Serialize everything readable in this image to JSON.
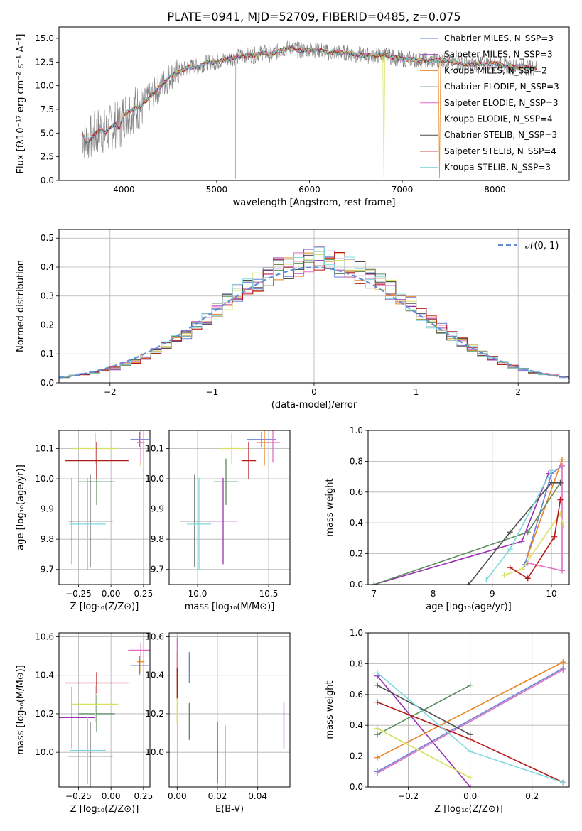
{
  "title": "PLATE=0941, MJD=52709, FIBERID=0485, z=0.075",
  "colors": [
    "#6b80d6",
    "#9b30b5",
    "#e58526",
    "#5b8c5e",
    "#e06fc0",
    "#d8e060",
    "#4d4d4d",
    "#b51a1a",
    "#7fd8de"
  ],
  "chart_data": [
    {
      "id": "spectrum",
      "type": "line",
      "xlabel": "wavelength [Angstrom, rest frame]",
      "ylabel": "Flux [fλ10⁻¹⁷ erg cm⁻² s⁻¹ A⁻¹]",
      "xlim": [
        3300,
        8800
      ],
      "ylim": [
        0,
        16.2
      ],
      "xticks": [
        4000,
        5000,
        6000,
        7000,
        8000
      ],
      "xtick_labels": [
        "4000",
        "5000",
        "6000",
        "7000",
        "8000"
      ],
      "yticks": [
        0,
        2.5,
        5,
        7.5,
        10,
        12.5,
        15
      ],
      "ytick_labels": [
        "0.0",
        "2.5",
        "5.0",
        "7.5",
        "10.0",
        "12.5",
        "15.0"
      ],
      "grid": false,
      "legend_position": "right",
      "legend": [
        "Chabrier MILES, N_SSP=3",
        "Salpeter MILES, N_SSP=3",
        "Kroupa MILES, N_SSP=2",
        "Chabrier ELODIE, N_SSP=3",
        "Salpeter ELODIE, N_SSP=3",
        "Kroupa ELODIE, N_SSP=4",
        "Chabrier STELIB, N_SSP=3",
        "Salpeter STELIB, N_SSP=4",
        "Kroupa STELIB, N_SSP=3"
      ],
      "legend_colors": [
        "#6b80d6",
        "#9b30b5",
        "#e58526",
        "#5b8c5e",
        "#e06fc0",
        "#d8e060",
        "#4d4d4d",
        "#b51a1a",
        "#7fd8de"
      ],
      "x": [
        3550,
        3600,
        3650,
        3700,
        3750,
        3800,
        3850,
        3900,
        3950,
        4000,
        4100,
        4200,
        4300,
        4400,
        4500,
        4600,
        4700,
        4800,
        4900,
        5000,
        5100,
        5200,
        5300,
        5400,
        5500,
        5600,
        5700,
        5800,
        5900,
        6000,
        6100,
        6200,
        6300,
        6400,
        6500,
        6600,
        6700,
        6800,
        6900,
        7000,
        7100,
        7200,
        7300,
        7400,
        7500,
        7600,
        7700,
        7800,
        7900,
        8000,
        8100,
        8200,
        8300,
        8400,
        8500
      ],
      "data": [
        5,
        4,
        4.5,
        5,
        5.5,
        5,
        5.5,
        6,
        5.5,
        7,
        7.5,
        8,
        9,
        10,
        11,
        11.5,
        12,
        12,
        12.5,
        12.5,
        12.8,
        13,
        13.2,
        13.2,
        13.5,
        13.3,
        13.8,
        14,
        13.7,
        13.8,
        13.8,
        13.5,
        13.5,
        13.5,
        13.3,
        13.2,
        13.2,
        13.3,
        13,
        12.8,
        12.8,
        12.7,
        12.6,
        12.7,
        12.6,
        12.4,
        12.2,
        12.3,
        12.3,
        12.4,
        12.1,
        12,
        12,
        11.9,
        11.8
      ]
    },
    {
      "id": "residuals",
      "type": "line",
      "xlabel": "(data-model)/error",
      "ylabel": "Normed distribution",
      "xlim": [
        -2.5,
        2.5
      ],
      "ylim": [
        0,
        0.53
      ],
      "xticks": [
        -2,
        -1,
        0,
        1,
        2
      ],
      "xtick_labels": [
        "−2",
        "−1",
        "0",
        "1",
        "2"
      ],
      "yticks": [
        0,
        0.1,
        0.2,
        0.3,
        0.4,
        0.5
      ],
      "ytick_labels": [
        "0.0",
        "0.1",
        "0.2",
        "0.3",
        "0.4",
        "0.5"
      ],
      "grid": true,
      "legend_position": "top-right",
      "legend": [
        "𝒩(0, 1)"
      ],
      "legend_color": "#5f8fd6",
      "x": [
        -2.5,
        -2.4,
        -2.3,
        -2.2,
        -2.1,
        -2.0,
        -1.9,
        -1.8,
        -1.7,
        -1.6,
        -1.5,
        -1.4,
        -1.3,
        -1.2,
        -1.1,
        -1.0,
        -0.9,
        -0.8,
        -0.7,
        -0.6,
        -0.5,
        -0.4,
        -0.3,
        -0.2,
        -0.1,
        0.0,
        0.1,
        0.2,
        0.3,
        0.4,
        0.5,
        0.6,
        0.7,
        0.8,
        0.9,
        1.0,
        1.1,
        1.2,
        1.3,
        1.4,
        1.5,
        1.6,
        1.7,
        1.8,
        1.9,
        2.0,
        2.1,
        2.2,
        2.3,
        2.4
      ],
      "data": [
        0.02,
        0.025,
        0.03,
        0.035,
        0.045,
        0.05,
        0.065,
        0.075,
        0.09,
        0.11,
        0.13,
        0.15,
        0.17,
        0.2,
        0.22,
        0.25,
        0.28,
        0.31,
        0.33,
        0.35,
        0.37,
        0.39,
        0.4,
        0.41,
        0.42,
        0.43,
        0.42,
        0.41,
        0.4,
        0.38,
        0.36,
        0.34,
        0.32,
        0.3,
        0.27,
        0.24,
        0.21,
        0.19,
        0.16,
        0.14,
        0.12,
        0.1,
        0.085,
        0.07,
        0.055,
        0.045,
        0.035,
        0.03,
        0.025,
        0.02
      ]
    },
    {
      "id": "z-age",
      "type": "scatter",
      "xlabel": "Z [log₁₀(Z/Z⊙)]",
      "ylabel": "age  [log₁₀(age/yr)]",
      "xlim": [
        -0.4,
        0.3
      ],
      "ylim": [
        9.65,
        10.16
      ],
      "xticks": [
        -0.25,
        0,
        0.25
      ],
      "xtick_labels": [
        "−0.25",
        "0.00",
        "0.25"
      ],
      "yticks": [
        9.7,
        9.8,
        9.9,
        10,
        10.1
      ],
      "ytick_labels": [
        "9.7",
        "9.8",
        "9.9",
        "10.0",
        "10.1"
      ],
      "grid": true,
      "points": [
        {
          "x": 0.22,
          "y": 10.13
        },
        {
          "x": -0.3,
          "y": 9.86
        },
        {
          "x": 0.23,
          "y": 10.12
        },
        {
          "x": -0.11,
          "y": 9.99
        },
        {
          "x": 0.23,
          "y": 10.12
        },
        {
          "x": -0.12,
          "y": 10.1
        },
        {
          "x": -0.16,
          "y": 9.86
        },
        {
          "x": -0.11,
          "y": 10.06
        },
        {
          "x": -0.18,
          "y": 9.85
        }
      ]
    },
    {
      "id": "mass-age",
      "type": "scatter",
      "xlabel": "mass [log₁₀(M/M⊙)]",
      "ylabel": "",
      "xlim": [
        9.8,
        10.65
      ],
      "ylim": [
        9.65,
        10.16
      ],
      "xticks": [
        10,
        10.5
      ],
      "xtick_labels": [
        "10.0",
        "10.5"
      ],
      "yticks": [
        9.7,
        9.8,
        9.9,
        10,
        10.1
      ],
      "ytick_labels": [
        "9.7",
        "9.8",
        "9.9",
        "10.0",
        "10.1"
      ],
      "grid": true,
      "points": [
        {
          "x": 10.45,
          "y": 10.13
        },
        {
          "x": 10.18,
          "y": 9.86
        },
        {
          "x": 10.47,
          "y": 10.12
        },
        {
          "x": 10.2,
          "y": 9.99
        },
        {
          "x": 10.53,
          "y": 10.12
        },
        {
          "x": 10.24,
          "y": 10.1
        },
        {
          "x": 9.98,
          "y": 9.86
        },
        {
          "x": 10.36,
          "y": 10.06
        },
        {
          "x": 10.01,
          "y": 9.85
        }
      ]
    },
    {
      "id": "age-weight",
      "type": "line",
      "xlabel": "age  [log₁₀(age/yr)]",
      "ylabel": "mass weight",
      "xlim": [
        6.9,
        10.3
      ],
      "ylim": [
        0,
        1
      ],
      "xticks": [
        7,
        8,
        9,
        10
      ],
      "xtick_labels": [
        "7",
        "8",
        "9",
        "10"
      ],
      "yticks": [
        0,
        0.2,
        0.4,
        0.6,
        0.8,
        1
      ],
      "ytick_labels": [
        "0.0",
        "0.2",
        "0.4",
        "0.6",
        "0.8",
        "1.0"
      ],
      "grid": true,
      "series": [
        {
          "x": [
            9.55,
            10.0,
            10.18
          ],
          "values": [
            0.13,
            0.72,
            0.77
          ]
        },
        {
          "x": [
            7.0,
            9.5,
            9.95
          ],
          "values": [
            0.0,
            0.28,
            0.72
          ]
        },
        {
          "x": [
            9.6,
            10.18
          ],
          "values": [
            0.19,
            0.81
          ]
        },
        {
          "x": [
            7.0,
            9.6,
            10.15
          ],
          "values": [
            0.0,
            0.34,
            0.66
          ]
        },
        {
          "x": [
            9.6,
            10.18,
            10.18
          ],
          "values": [
            0.14,
            0.09,
            0.77
          ]
        },
        {
          "x": [
            9.2,
            9.5,
            10.15,
            10.2
          ],
          "values": [
            0.06,
            0.1,
            0.46,
            0.38
          ]
        },
        {
          "x": [
            8.6,
            9.3,
            10.0,
            10.15
          ],
          "values": [
            0.0,
            0.34,
            0.66,
            0.66
          ]
        },
        {
          "x": [
            9.3,
            9.6,
            10.05,
            10.15
          ],
          "values": [
            0.11,
            0.04,
            0.31,
            0.55
          ]
        },
        {
          "x": [
            8.9,
            9.3,
            10.0
          ],
          "values": [
            0.03,
            0.23,
            0.74
          ]
        }
      ]
    },
    {
      "id": "z-mass",
      "type": "scatter",
      "xlabel": "Z [log₁₀(Z/Z⊙)]",
      "ylabel": "mass [log₁₀(M/M⊙)]",
      "xlim": [
        -0.4,
        0.3
      ],
      "ylim": [
        9.82,
        10.62
      ],
      "xticks": [
        -0.25,
        0,
        0.25
      ],
      "xtick_labels": [
        "−0.25",
        "0.00",
        "0.25"
      ],
      "yticks": [
        10,
        10.2,
        10.4,
        10.6
      ],
      "ytick_labels": [
        "10.0",
        "10.2",
        "10.4",
        "10.6"
      ],
      "grid": true,
      "points": [
        {
          "x": 0.22,
          "y": 10.45
        },
        {
          "x": -0.3,
          "y": 10.18
        },
        {
          "x": 0.23,
          "y": 10.47
        },
        {
          "x": -0.11,
          "y": 10.2
        },
        {
          "x": 0.23,
          "y": 10.53
        },
        {
          "x": -0.12,
          "y": 10.25
        },
        {
          "x": -0.16,
          "y": 9.98
        },
        {
          "x": -0.11,
          "y": 10.36
        },
        {
          "x": -0.18,
          "y": 10.01
        }
      ]
    },
    {
      "id": "ebv-mass",
      "type": "scatter",
      "xlabel": "E(B-V)",
      "ylabel": "",
      "xlim": [
        -0.004,
        0.056
      ],
      "ylim": [
        9.82,
        10.62
      ],
      "xticks": [
        0,
        0.02,
        0.04
      ],
      "xtick_labels": [
        "0.00",
        "0.02",
        "0.04"
      ],
      "yticks": [
        10,
        10.2,
        10.4,
        10.6
      ],
      "ytick_labels": [
        "10.0",
        "10.2",
        "10.4",
        "10.6"
      ],
      "grid": true,
      "points": [
        {
          "x": 0.006,
          "y": 10.44
        },
        {
          "x": 0.053,
          "y": 10.14
        },
        {
          "x": 0.0,
          "y": 10.4
        },
        {
          "x": 0.006,
          "y": 10.16
        },
        {
          "x": 0.0,
          "y": 10.5
        },
        {
          "x": 0.0,
          "y": 10.24
        },
        {
          "x": 0.02,
          "y": 10.0
        },
        {
          "x": 0.0,
          "y": 10.36
        },
        {
          "x": 0.024,
          "y": 9.98
        }
      ]
    },
    {
      "id": "z-weight",
      "type": "line",
      "xlabel": "Z [log₁₀(Z/Z⊙)]",
      "ylabel": "mass weight",
      "xlim": [
        -0.33,
        0.32
      ],
      "ylim": [
        0,
        1
      ],
      "xticks": [
        -0.2,
        0,
        0.2
      ],
      "xtick_labels": [
        "−0.2",
        "0.0",
        "0.2"
      ],
      "yticks": [
        0,
        0.2,
        0.4,
        0.6,
        0.8,
        1
      ],
      "ytick_labels": [
        "0.0",
        "0.2",
        "0.4",
        "0.6",
        "0.8",
        "1.0"
      ],
      "grid": true,
      "series": [
        {
          "x": [
            -0.3,
            0.3
          ],
          "values": [
            0.1,
            0.77
          ]
        },
        {
          "x": [
            -0.3,
            0.0
          ],
          "values": [
            0.72,
            0.0
          ]
        },
        {
          "x": [
            -0.3,
            0.3
          ],
          "values": [
            0.19,
            0.81
          ]
        },
        {
          "x": [
            -0.3,
            0.0
          ],
          "values": [
            0.34,
            0.66
          ]
        },
        {
          "x": [
            -0.3,
            0.3
          ],
          "values": [
            0.09,
            0.76
          ]
        },
        {
          "x": [
            -0.3,
            0.0
          ],
          "values": [
            0.38,
            0.06
          ]
        },
        {
          "x": [
            -0.3,
            0.0
          ],
          "values": [
            0.66,
            0.34
          ]
        },
        {
          "x": [
            -0.3,
            0.0,
            0.3
          ],
          "values": [
            0.55,
            0.31,
            0.03
          ]
        },
        {
          "x": [
            -0.3,
            0.0,
            0.3
          ],
          "values": [
            0.74,
            0.23,
            0.03
          ]
        }
      ]
    }
  ]
}
